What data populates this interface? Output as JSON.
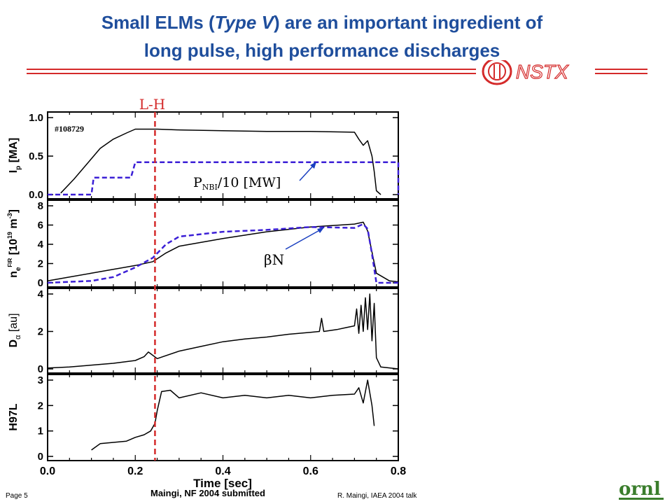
{
  "slide": {
    "title_line1_a": "Small ELMs (",
    "title_line1_b": "Type V",
    "title_line1_c": ") are an important ingredient of",
    "title_line2": "long pulse, high performance discharges",
    "nstx_logo_text": "NSTX",
    "page_number": "Page 5",
    "citation": "Maingi, NF 2004 submitted",
    "talk_credit": "R. Maingi, IAEA 2004 talk",
    "ornl_logo_text": "ornl",
    "colors": {
      "title": "#1f4e9c",
      "accent_red": "#d42a2a",
      "nbi_dashed": "#3b1fd6",
      "trace": "#000000"
    }
  },
  "chart_data": {
    "type": "line",
    "shot_label": "#108729",
    "lh_marker": {
      "label": "L-H",
      "x": 0.245
    },
    "xlabel": "Time [sec]",
    "xlim": [
      0.0,
      0.8
    ],
    "xticks": [
      "0.0",
      "0.2",
      "0.4",
      "0.6",
      "0.8"
    ],
    "panels": [
      {
        "id": "ip",
        "ylabel": "I_p [MA]",
        "ylim": [
          0.0,
          1.0
        ],
        "yticks": [
          "0.0",
          "0.5",
          "1.0"
        ],
        "series": [
          {
            "style": "solid",
            "x": [
              0.03,
              0.06,
              0.09,
              0.12,
              0.15,
              0.18,
              0.2,
              0.25,
              0.3,
              0.4,
              0.5,
              0.6,
              0.7,
              0.71,
              0.72,
              0.73,
              0.74,
              0.745,
              0.75,
              0.76
            ],
            "values": [
              0.02,
              0.2,
              0.4,
              0.6,
              0.72,
              0.8,
              0.85,
              0.85,
              0.84,
              0.83,
              0.82,
              0.82,
              0.81,
              0.72,
              0.64,
              0.7,
              0.5,
              0.3,
              0.05,
              0.0
            ]
          },
          {
            "name": "P_NBI/10 [MW]",
            "style": "dashed",
            "x": [
              0.0,
              0.1,
              0.105,
              0.19,
              0.2,
              0.6,
              0.75,
              0.755,
              0.79,
              0.8,
              0.8
            ],
            "values": [
              0.0,
              0.0,
              0.22,
              0.22,
              0.42,
              0.42,
              0.42,
              0.42,
              0.42,
              0.42,
              0.0
            ]
          }
        ],
        "annotation": {
          "text_main": "P",
          "text_sub": "NBI",
          "text_tail": "/10 [MW]"
        }
      },
      {
        "id": "ne",
        "ylabel": "n_e^FIR [10^19 m^-3]",
        "ylim": [
          0,
          8
        ],
        "yticks": [
          "0",
          "2",
          "4",
          "6",
          "8"
        ],
        "series": [
          {
            "style": "solid",
            "x": [
              0.0,
              0.05,
              0.1,
              0.15,
              0.2,
              0.24,
              0.27,
              0.3,
              0.4,
              0.5,
              0.6,
              0.7,
              0.72,
              0.73,
              0.74,
              0.75,
              0.78,
              0.8
            ],
            "values": [
              0.2,
              0.6,
              1.0,
              1.4,
              1.8,
              2.2,
              3.1,
              3.8,
              4.6,
              5.3,
              5.8,
              6.1,
              6.3,
              5.4,
              3.2,
              1.0,
              0.2,
              0.1
            ]
          },
          {
            "name": "β_N",
            "style": "dashed",
            "x": [
              0.0,
              0.05,
              0.1,
              0.15,
              0.2,
              0.24,
              0.27,
              0.3,
              0.4,
              0.5,
              0.6,
              0.7,
              0.72,
              0.73,
              0.74,
              0.75,
              0.8
            ],
            "values": [
              0.0,
              0.1,
              0.2,
              0.6,
              1.6,
              2.6,
              4.0,
              4.8,
              5.3,
              5.5,
              5.8,
              5.7,
              6.1,
              5.6,
              3.0,
              0.0,
              0.0
            ]
          }
        ],
        "annotation": {
          "text": "βN"
        }
      },
      {
        "id": "dalpha",
        "ylabel": "D_α [au]",
        "ylim": [
          0,
          4
        ],
        "yticks": [
          "0",
          "2",
          "4"
        ],
        "series": [
          {
            "style": "solid",
            "x": [
              0.0,
              0.05,
              0.1,
              0.15,
              0.2,
              0.22,
              0.23,
              0.25,
              0.3,
              0.35,
              0.4,
              0.45,
              0.5,
              0.55,
              0.6,
              0.62,
              0.625,
              0.63,
              0.66,
              0.68,
              0.7,
              0.705,
              0.71,
              0.715,
              0.72,
              0.725,
              0.73,
              0.735,
              0.74,
              0.745,
              0.75,
              0.76,
              0.8
            ],
            "values": [
              0.05,
              0.1,
              0.2,
              0.3,
              0.45,
              0.65,
              0.9,
              0.55,
              0.95,
              1.2,
              1.45,
              1.6,
              1.7,
              1.85,
              1.95,
              2.0,
              2.7,
              2.0,
              2.1,
              2.2,
              2.3,
              3.2,
              1.9,
              3.4,
              2.0,
              3.8,
              2.1,
              4.0,
              1.5,
              3.5,
              0.6,
              0.1,
              0.0
            ]
          }
        ]
      },
      {
        "id": "h97l",
        "ylabel": "H97L",
        "ylim": [
          0,
          3
        ],
        "yticks": [
          "0",
          "1",
          "2",
          "3"
        ],
        "series": [
          {
            "style": "solid",
            "x": [
              0.1,
              0.12,
              0.15,
              0.18,
              0.2,
              0.22,
              0.235,
              0.245,
              0.25,
              0.26,
              0.28,
              0.3,
              0.35,
              0.4,
              0.45,
              0.5,
              0.55,
              0.6,
              0.65,
              0.7,
              0.71,
              0.72,
              0.73,
              0.74,
              0.745
            ],
            "values": [
              0.25,
              0.5,
              0.55,
              0.6,
              0.75,
              0.85,
              1.0,
              1.3,
              1.8,
              2.55,
              2.6,
              2.3,
              2.5,
              2.3,
              2.4,
              2.3,
              2.4,
              2.3,
              2.4,
              2.45,
              2.7,
              2.1,
              3.0,
              2.0,
              1.2
            ]
          }
        ]
      }
    ]
  }
}
